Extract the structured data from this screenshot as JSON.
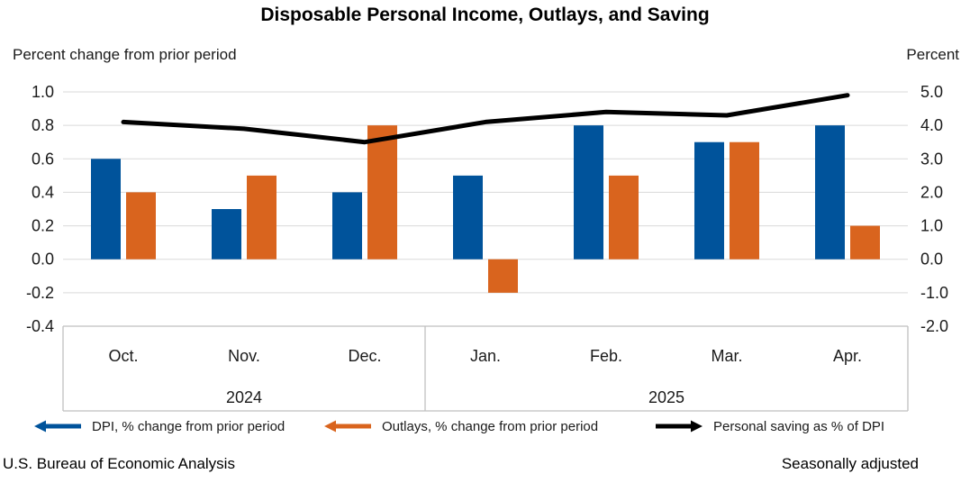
{
  "title": "Disposable Personal Income, Outlays, and Saving",
  "axis_units": {
    "left": "Percent change from prior period",
    "right": "Percent"
  },
  "legend": [
    {
      "label": "DPI, % change from prior period",
      "color": "#00539B",
      "arrow": "left"
    },
    {
      "label": "Outlays, % change from prior period",
      "color": "#D9641E",
      "arrow": "left"
    },
    {
      "label": "Personal saving as % of DPI",
      "color": "#000000",
      "arrow": "right"
    }
  ],
  "footer": {
    "left": "U.S. Bureau of Economic Analysis",
    "right": "Seasonally adjusted"
  },
  "colors": {
    "dpi_blue": "#00539B",
    "outlays_orange": "#D9641E",
    "saving_black": "#000000",
    "gridline": "#D9D9D9",
    "axis_box": "#BFBFBF",
    "text": "#1A1A1A"
  },
  "chart_data": {
    "type": "bar",
    "subtype": "grouped bars with overlaid line on secondary axis",
    "categories": [
      "Oct.",
      "Nov.",
      "Dec.",
      "Jan.",
      "Feb.",
      "Mar.",
      "Apr."
    ],
    "year_groups": [
      {
        "label": "2024",
        "months": 3
      },
      {
        "label": "2025",
        "months": 4
      }
    ],
    "series": [
      {
        "name": "DPI, % change from prior period",
        "type": "bar",
        "axis": "left",
        "color": "#00539B",
        "values": [
          0.6,
          0.3,
          0.4,
          0.5,
          0.8,
          0.7,
          0.8
        ]
      },
      {
        "name": "Outlays, % change from prior period",
        "type": "bar",
        "axis": "left",
        "color": "#D9641E",
        "values": [
          0.4,
          0.5,
          0.8,
          -0.2,
          0.5,
          0.7,
          0.2
        ]
      },
      {
        "name": "Personal saving as % of DPI",
        "type": "line",
        "axis": "right",
        "color": "#000000",
        "values": [
          4.1,
          3.9,
          3.5,
          4.1,
          4.4,
          4.3,
          4.9
        ]
      }
    ],
    "left_axis": {
      "label": "Percent change from prior period",
      "min": -0.4,
      "max": 1.0,
      "step": 0.2,
      "ticks": [
        "1.0",
        "0.8",
        "0.6",
        "0.4",
        "0.2",
        "0.0",
        "-0.2",
        "-0.4"
      ]
    },
    "right_axis": {
      "label": "Percent",
      "min": -2.0,
      "max": 5.0,
      "step": 1.0,
      "ticks": [
        "5.0",
        "4.0",
        "3.0",
        "2.0",
        "1.0",
        "0.0",
        "-1.0",
        "-2.0"
      ]
    },
    "grid": true,
    "legend_position": "bottom",
    "notes": "Seasonally adjusted; source U.S. Bureau of Economic Analysis"
  }
}
